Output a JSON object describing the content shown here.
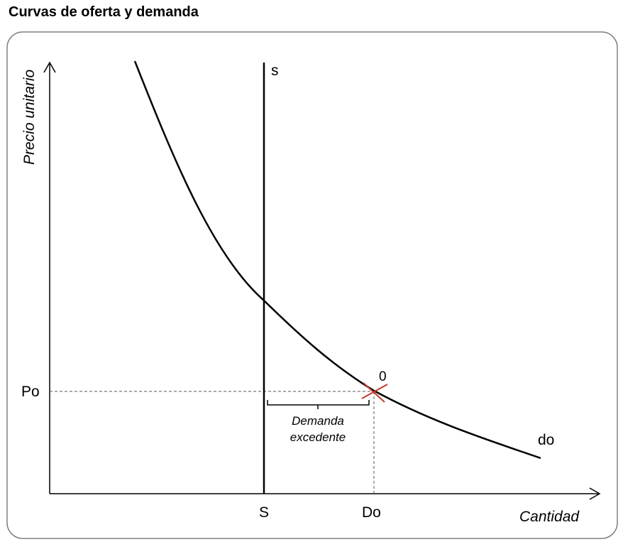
{
  "title": "Curvas de oferta y demanda",
  "axes": {
    "y_label": "Precio unitario",
    "x_label": "Cantidad"
  },
  "labels": {
    "supply_curve": "s",
    "demand_curve": "do",
    "equilibrium_point": "0",
    "price_tick": "Po",
    "supply_qty_tick": "S",
    "demand_qty_tick": "Do",
    "excess_line1": "Demanda",
    "excess_line2": "excedente"
  },
  "colors": {
    "curve": "#000000",
    "marker": "#c0392b",
    "guide": "#555555",
    "border": "#808080"
  }
}
